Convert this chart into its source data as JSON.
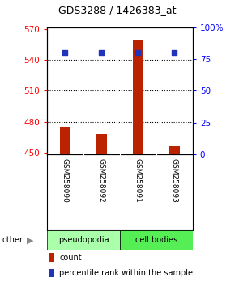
{
  "title": "GDS3288 / 1426383_at",
  "samples": [
    "GSM258090",
    "GSM258092",
    "GSM258091",
    "GSM258093"
  ],
  "bar_values": [
    475,
    468,
    560,
    456
  ],
  "percentile_values": [
    80,
    80,
    80,
    80
  ],
  "bar_color": "#bb2200",
  "percentile_color": "#2233bb",
  "ylim_left": [
    448,
    572
  ],
  "ylim_right": [
    0,
    100
  ],
  "yticks_left": [
    450,
    480,
    510,
    540,
    570
  ],
  "yticks_right": [
    0,
    25,
    50,
    75,
    100
  ],
  "ytick_labels_right": [
    "0",
    "25",
    "50",
    "75",
    "100%"
  ],
  "bar_bottom": 448,
  "grid_lines": [
    540,
    510,
    480
  ],
  "group_labels": [
    "pseudopodia",
    "cell bodies"
  ],
  "group_colors": [
    "#aaffaa",
    "#55ee55"
  ],
  "group_ranges": [
    [
      0,
      2
    ],
    [
      2,
      4
    ]
  ],
  "other_label": "other",
  "legend_count_label": "count",
  "legend_percentile_label": "percentile rank within the sample",
  "bg_color": "#ffffff",
  "plot_bg_color": "#ffffff",
  "sample_label_area_color": "#cccccc"
}
